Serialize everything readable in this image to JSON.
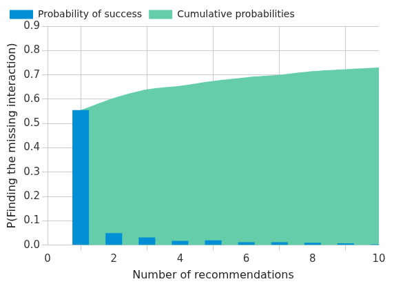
{
  "chart_data": {
    "type": "bar",
    "x_label": "Number of recommendations",
    "y_label": "P(Finding the missing interaction)",
    "x": [
      1,
      2,
      3,
      4,
      5,
      6,
      7,
      8,
      9,
      10
    ],
    "series": [
      {
        "name": "Cumulative probabilities",
        "type": "area",
        "color": "#66cdaa",
        "values": [
          0.555,
          0.605,
          0.64,
          0.655,
          0.675,
          0.69,
          0.7,
          0.715,
          0.723,
          0.73
        ]
      },
      {
        "name": "Probability of success",
        "type": "bar",
        "color": "#008fd5",
        "values": [
          0.555,
          0.05,
          0.032,
          0.018,
          0.02,
          0.012,
          0.012,
          0.01,
          0.008,
          0.004
        ]
      }
    ],
    "xlim": [
      0,
      10
    ],
    "xticks": [
      0,
      2,
      4,
      6,
      8,
      10
    ],
    "ylim": [
      0,
      0.9
    ],
    "yticks": [
      {
        "value": 0,
        "label": "0.0"
      },
      0.1,
      0.2,
      0.3,
      0.4,
      0.5,
      0.6,
      0.7,
      0.8,
      0.9
    ],
    "grid": true,
    "legend": "upper left"
  }
}
